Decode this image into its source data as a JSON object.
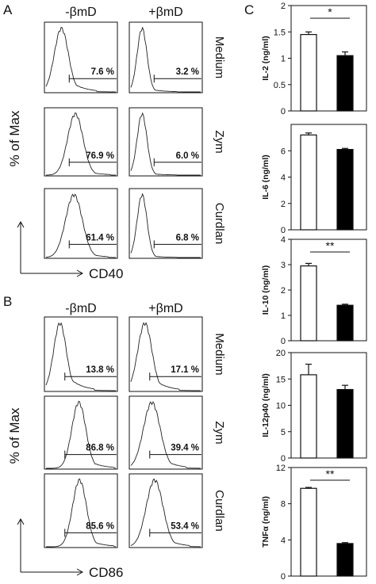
{
  "panel_letters": [
    "A",
    "B",
    "C"
  ],
  "flow": [
    {
      "columns": [
        "-βmD",
        "+βmD"
      ],
      "ylabel": "% of Max",
      "xlabel": "CD40",
      "rows": [
        {
          "label": "Medium",
          "percents": [
            "7.6 %",
            "3.2 %"
          ]
        },
        {
          "label": "Zym",
          "percents": [
            "76.9 %",
            "6.0 %"
          ]
        },
        {
          "label": "Curdlan",
          "percents": [
            "61.4 %",
            "6.8 %"
          ]
        }
      ]
    },
    {
      "columns": [
        "-βmD",
        "+βmD"
      ],
      "ylabel": "% of Max",
      "xlabel": "CD86",
      "rows": [
        {
          "label": "Medium",
          "percents": [
            "13.8 %",
            "17.1 %"
          ]
        },
        {
          "label": "Zym",
          "percents": [
            "86.8 %",
            "39.4 %"
          ]
        },
        {
          "label": "Curdlan",
          "percents": [
            "85.6 %",
            "53.4 %"
          ]
        }
      ]
    }
  ],
  "chart_data": [
    {
      "type": "bar",
      "ylabel": "IL-2 (ng/ml)",
      "values": [
        1.45,
        1.05
      ],
      "errors": [
        0.05,
        0.07
      ],
      "ylim": [
        0,
        2
      ],
      "yticks": [
        0,
        0.5,
        1,
        1.5,
        2
      ],
      "tick_labels": [
        "0",
        "0.5",
        "1",
        "1.5",
        "2"
      ],
      "significance": "*",
      "fills": [
        "#ffffff",
        "#000000"
      ]
    },
    {
      "type": "bar",
      "ylabel": "IL-6 (ng/ml)",
      "values": [
        7.2,
        6.1
      ],
      "errors": [
        0.15,
        0.08
      ],
      "ylim": [
        0,
        8
      ],
      "yticks": [
        0,
        2,
        4,
        6
      ],
      "tick_labels": [
        "0",
        "2",
        "4",
        "6"
      ],
      "significance": "",
      "fills": [
        "#ffffff",
        "#000000"
      ]
    },
    {
      "type": "bar",
      "ylabel": "IL-10 (ng/ml)",
      "values": [
        2.95,
        1.4
      ],
      "errors": [
        0.1,
        0.04
      ],
      "ylim": [
        0,
        4
      ],
      "yticks": [
        0,
        1,
        2,
        3,
        4
      ],
      "tick_labels": [
        "0",
        "1",
        "2",
        "3",
        "4"
      ],
      "significance": "**",
      "fills": [
        "#ffffff",
        "#000000"
      ]
    },
    {
      "type": "bar",
      "ylabel": "IL-12p40 (ng/ml)",
      "values": [
        15.8,
        13.0
      ],
      "errors": [
        2.0,
        0.8
      ],
      "ylim": [
        0,
        20
      ],
      "yticks": [
        0,
        5,
        10,
        15,
        20
      ],
      "tick_labels": [
        "0",
        "5",
        "10",
        "15",
        "20"
      ],
      "significance": "",
      "fills": [
        "#ffffff",
        "#000000"
      ]
    },
    {
      "type": "bar",
      "ylabel": "TNFα (ng/ml)",
      "values": [
        9.7,
        3.6
      ],
      "errors": [
        0.1,
        0.1
      ],
      "ylim": [
        0,
        12
      ],
      "yticks": [
        0,
        4,
        8,
        12
      ],
      "tick_labels": [
        "0",
        "4",
        "8",
        "12"
      ],
      "significance": "**",
      "fills": [
        "#ffffff",
        "#000000"
      ]
    }
  ]
}
